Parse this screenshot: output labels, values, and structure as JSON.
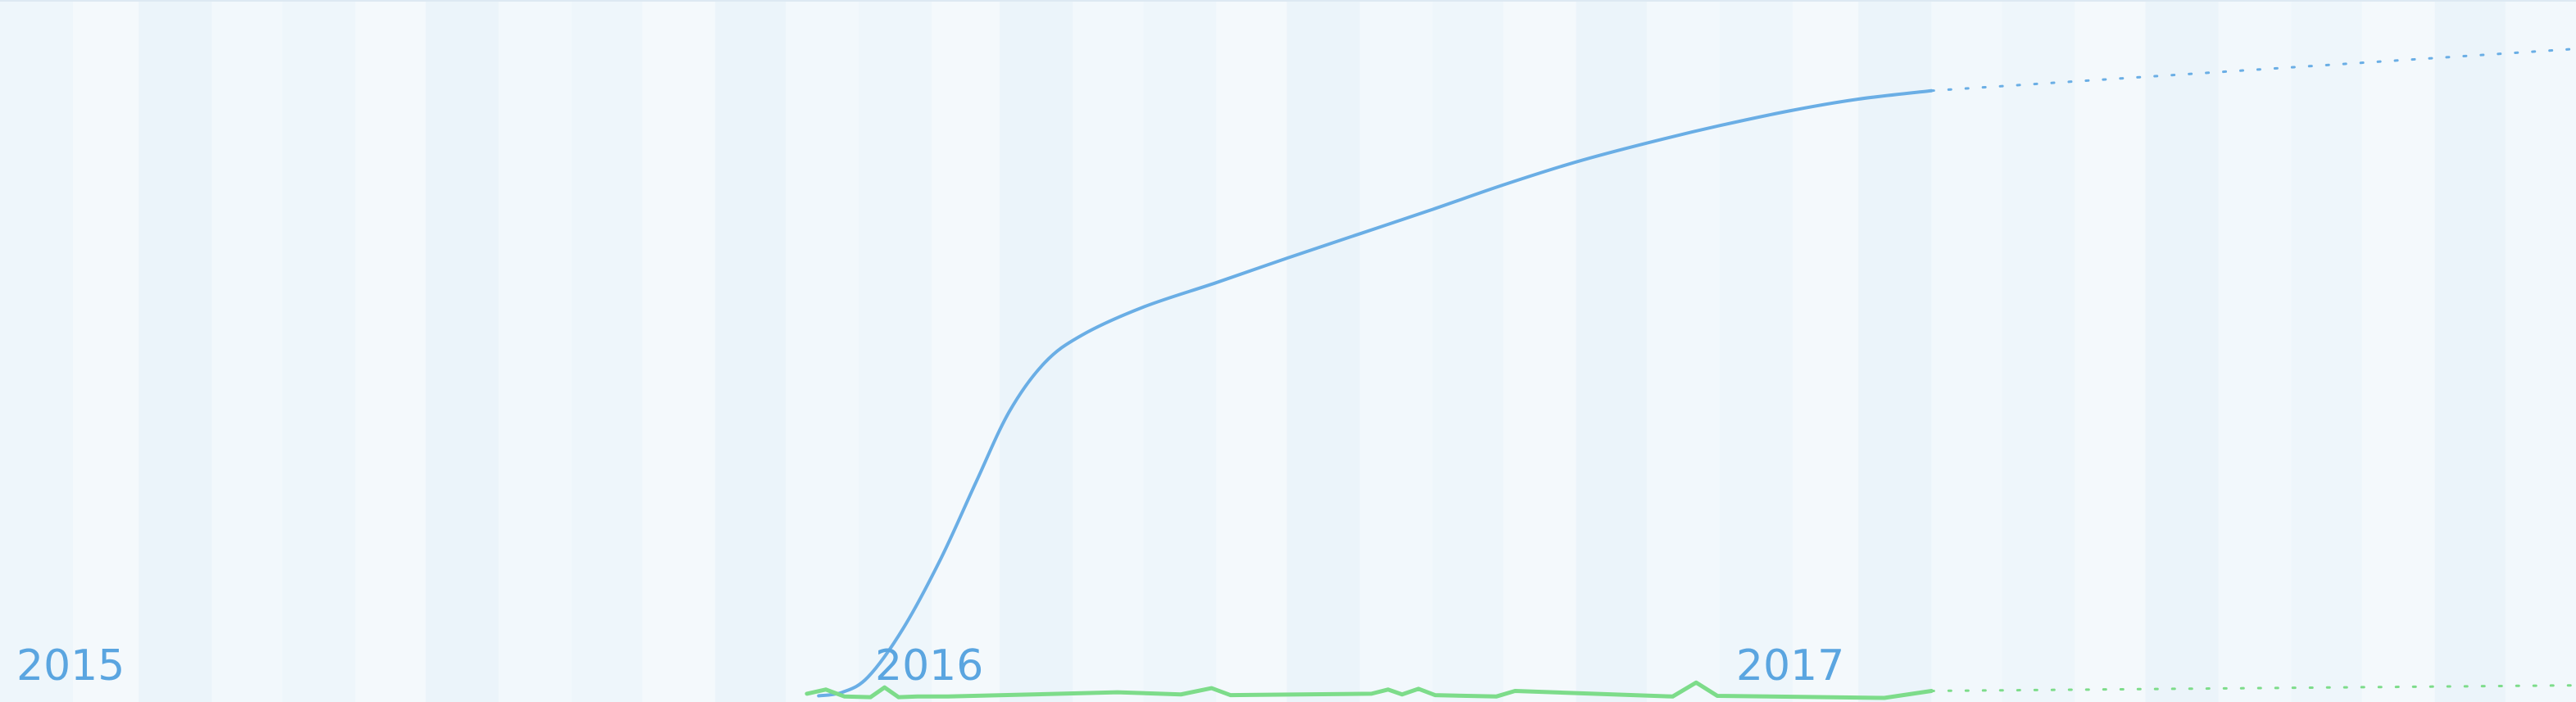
{
  "chart_data": {
    "type": "line",
    "title": "",
    "xlabel": "",
    "ylabel": "",
    "grid": true,
    "legend": "none",
    "x_tick_labels": [
      "2015",
      "2016",
      "2017"
    ],
    "x_range": [
      "2015-01-01",
      "2017-12-31"
    ],
    "y_range": [
      0,
      100
    ],
    "series": [
      {
        "color": "#6aaee5",
        "line_style": "solid",
        "projection_style": "dotted",
        "points": [
          {
            "x": "2015-12-15",
            "y": 0.3
          },
          {
            "x": "2015-12-25",
            "y": 0.8
          },
          {
            "x": "2016-01-05",
            "y": 3
          },
          {
            "x": "2016-01-20",
            "y": 10
          },
          {
            "x": "2016-02-05",
            "y": 20
          },
          {
            "x": "2016-02-20",
            "y": 31
          },
          {
            "x": "2016-03-05",
            "y": 41
          },
          {
            "x": "2016-03-20",
            "y": 48
          },
          {
            "x": "2016-04-05",
            "y": 52
          },
          {
            "x": "2016-05-01",
            "y": 56
          },
          {
            "x": "2016-06-01",
            "y": 59.5
          },
          {
            "x": "2016-07-01",
            "y": 63
          },
          {
            "x": "2016-08-01",
            "y": 66.5
          },
          {
            "x": "2016-09-01",
            "y": 70
          },
          {
            "x": "2016-10-01",
            "y": 73.5
          },
          {
            "x": "2016-11-01",
            "y": 76.8
          },
          {
            "x": "2016-12-01",
            "y": 79.5
          },
          {
            "x": "2017-01-01",
            "y": 82
          },
          {
            "x": "2017-02-01",
            "y": 84.2
          },
          {
            "x": "2017-03-01",
            "y": 85.8
          },
          {
            "x": "2017-04-01",
            "y": 87
          }
        ],
        "projection": [
          {
            "x": "2017-04-01",
            "y": 87
          },
          {
            "x": "2017-12-31",
            "y": 93
          }
        ]
      },
      {
        "color": "#7ddc8a",
        "line_style": "solid",
        "projection_style": "dotted",
        "points": [
          {
            "x": "2015-12-10",
            "y": 0.6
          },
          {
            "x": "2015-12-18",
            "y": 1.2
          },
          {
            "x": "2015-12-26",
            "y": 0.2
          },
          {
            "x": "2016-01-06",
            "y": 0.1
          },
          {
            "x": "2016-01-12",
            "y": 1.5
          },
          {
            "x": "2016-01-18",
            "y": 0.1
          },
          {
            "x": "2016-01-26",
            "y": 0.2
          },
          {
            "x": "2016-02-08",
            "y": 0.2
          },
          {
            "x": "2016-04-20",
            "y": 0.8
          },
          {
            "x": "2016-05-17",
            "y": 0.5
          },
          {
            "x": "2016-05-30",
            "y": 1.4
          },
          {
            "x": "2016-06-07",
            "y": 0.4
          },
          {
            "x": "2016-08-06",
            "y": 0.6
          },
          {
            "x": "2016-08-13",
            "y": 1.2
          },
          {
            "x": "2016-08-19",
            "y": 0.5
          },
          {
            "x": "2016-08-26",
            "y": 1.3
          },
          {
            "x": "2016-09-02",
            "y": 0.4
          },
          {
            "x": "2016-09-28",
            "y": 0.2
          },
          {
            "x": "2016-10-06",
            "y": 1.0
          },
          {
            "x": "2016-12-12",
            "y": 0.2
          },
          {
            "x": "2016-12-22",
            "y": 2.2
          },
          {
            "x": "2016-12-31",
            "y": 0.3
          },
          {
            "x": "2017-03-12",
            "y": 0.0
          },
          {
            "x": "2017-04-01",
            "y": 1.0
          }
        ],
        "projection": [
          {
            "x": "2017-04-01",
            "y": 1.0
          },
          {
            "x": "2017-12-31",
            "y": 1.8
          }
        ]
      }
    ]
  }
}
